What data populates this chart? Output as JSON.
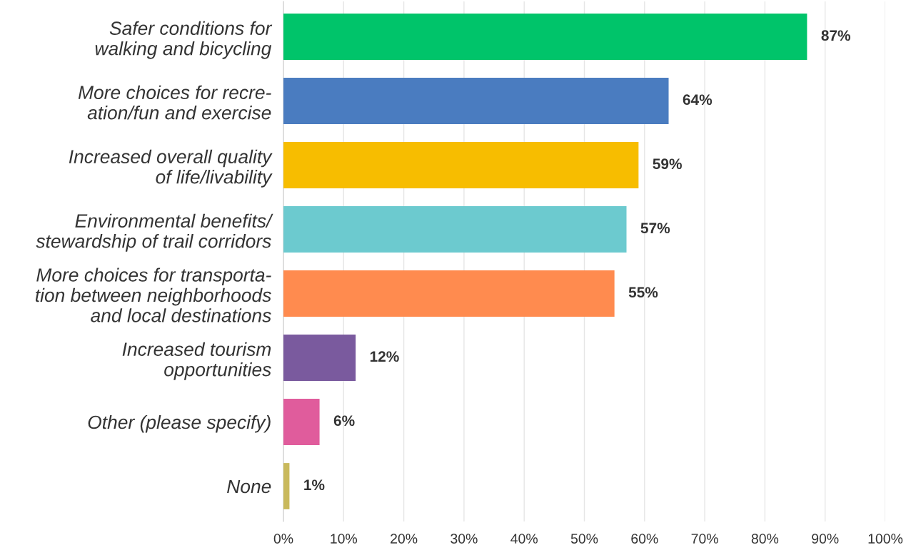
{
  "chart_data": {
    "type": "bar",
    "orientation": "horizontal",
    "categories": [
      "Safer conditions for\nwalking and bicycling",
      "More choices for recre-\nation/fun and exercise",
      "Increased overall quality\nof life/livability",
      "Environmental benefits/\nstewardship of trail corridors",
      "More choices for transporta-\ntion between neighborhoods\nand local destinations",
      "Increased tourism\nopportunities",
      "Other (please specify)",
      "None"
    ],
    "values": [
      87,
      64,
      59,
      57,
      55,
      12,
      6,
      1
    ],
    "colors": [
      "#00c46a",
      "#4a7cc0",
      "#f7bd00",
      "#6ccacf",
      "#ff8b4f",
      "#7a5a9e",
      "#e05c9c",
      "#c9b95c"
    ],
    "value_labels": [
      "87%",
      "64%",
      "59%",
      "57%",
      "55%",
      "12%",
      "6%",
      "1%"
    ],
    "xlim": [
      0,
      100
    ],
    "xticks": [
      {
        "value": 0,
        "label": "0%"
      },
      {
        "value": 10,
        "label": "10%"
      },
      {
        "value": 20,
        "label": "20%"
      },
      {
        "value": 30,
        "label": "30%"
      },
      {
        "value": 40,
        "label": "40%"
      },
      {
        "value": 50,
        "label": "50%"
      },
      {
        "value": 60,
        "label": "60%"
      },
      {
        "value": 70,
        "label": "70%"
      },
      {
        "value": 80,
        "label": "80%"
      },
      {
        "value": 90,
        "label": "90%"
      },
      {
        "value": 100,
        "label": "100%"
      }
    ],
    "grid": "x"
  }
}
